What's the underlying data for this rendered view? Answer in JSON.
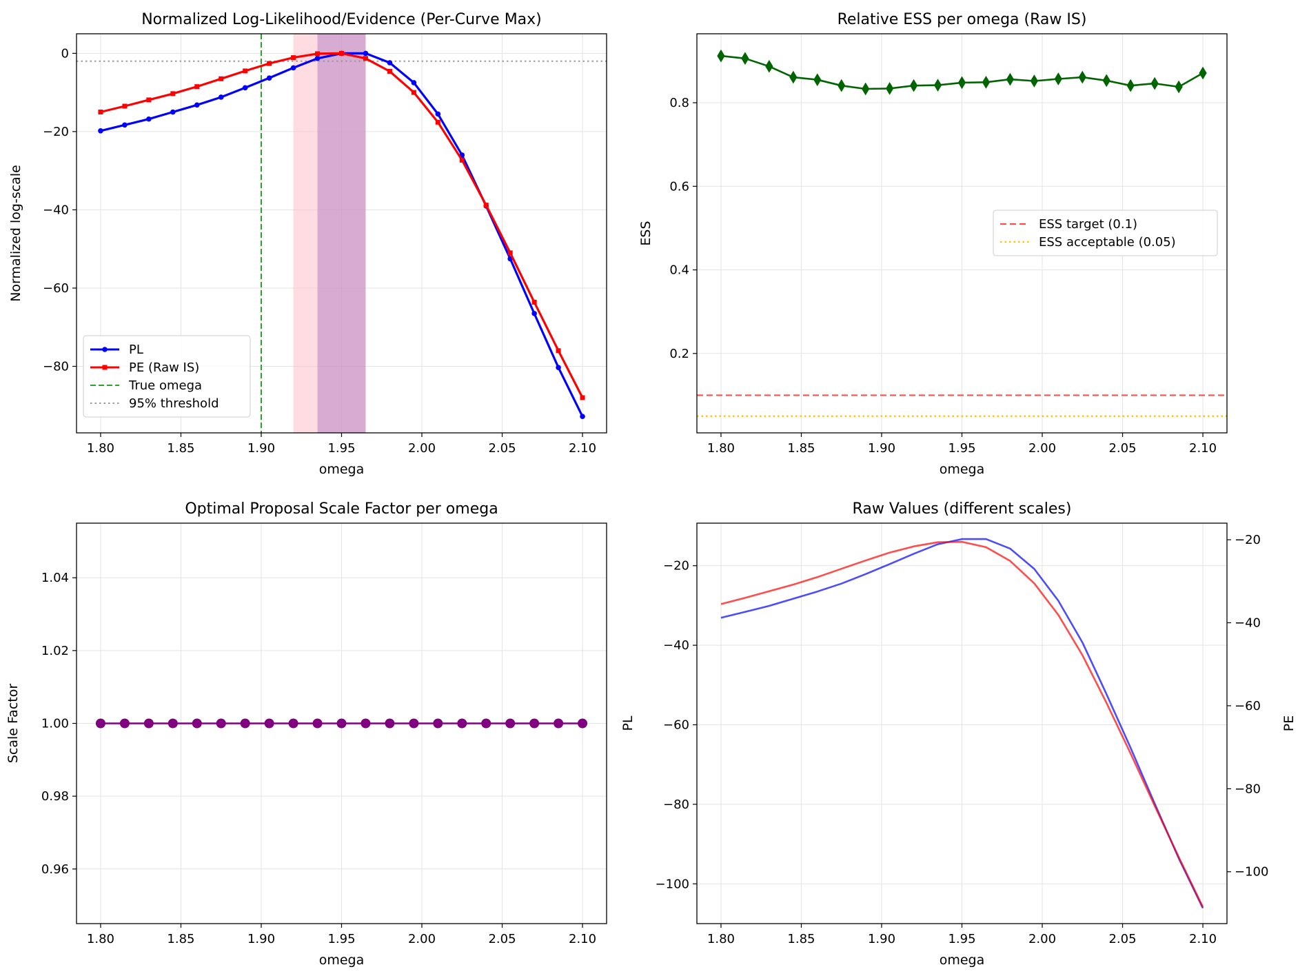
{
  "colors": {
    "pl": "#0000ff",
    "pe": "#ff0000",
    "true_omega": "#2ca02c",
    "threshold": "#999999",
    "ess": "#006400",
    "ess_target": "#ff4d4d",
    "ess_acceptable": "#ffc000",
    "scale": "#800080",
    "pl_span": "#ffc0c8",
    "pe_span": "#b784c7"
  },
  "chart_data": [
    {
      "type": "line",
      "title": "Normalized Log-Likelihood/Evidence (Per-Curve Max)",
      "xlabel": "omega",
      "ylabel": "Normalized log-scale",
      "xlim": [
        1.785,
        2.115
      ],
      "ylim": [
        -97,
        5
      ],
      "xticks": [
        1.8,
        1.85,
        1.9,
        1.95,
        2.0,
        2.05,
        2.1
      ],
      "xtick_labels": [
        "1.80",
        "1.85",
        "1.90",
        "1.95",
        "2.00",
        "2.05",
        "2.10"
      ],
      "yticks": [
        0,
        -20,
        -40,
        -60,
        -80
      ],
      "ytick_labels": [
        "0",
        "−20",
        "−40",
        "−60",
        "−80"
      ],
      "grid": true,
      "legend_position": "lower-left",
      "x": [
        1.8,
        1.815,
        1.83,
        1.845,
        1.86,
        1.875,
        1.89,
        1.905,
        1.92,
        1.935,
        1.95,
        1.965,
        1.98,
        1.995,
        2.01,
        2.025,
        2.04,
        2.055,
        2.07,
        2.085,
        2.1
      ],
      "series": [
        {
          "name": "PL",
          "marker": "circle",
          "values": [
            -19.8,
            -18.3,
            -16.8,
            -15.0,
            -13.2,
            -11.2,
            -8.8,
            -6.3,
            -3.7,
            -1.3,
            0.0,
            0.0,
            -2.4,
            -7.5,
            -15.5,
            -26.0,
            -39.0,
            -52.5,
            -66.5,
            -80.3,
            -92.8
          ]
        },
        {
          "name": "PE (Raw IS)",
          "marker": "square",
          "values": [
            -15.0,
            -13.5,
            -11.9,
            -10.3,
            -8.5,
            -6.5,
            -4.5,
            -2.6,
            -1.1,
            -0.1,
            0.0,
            -1.3,
            -4.6,
            -10.0,
            -17.6,
            -27.3,
            -38.8,
            -51.0,
            -63.6,
            -76.0,
            -88.0
          ]
        }
      ],
      "reference_lines": [
        {
          "name": "True omega",
          "orientation": "vertical",
          "x": 1.9,
          "style": "dashed"
        },
        {
          "name": "95% threshold",
          "orientation": "horizontal",
          "y": -2.0,
          "style": "dotted"
        }
      ],
      "shaded_x_ranges": [
        {
          "from": 1.92,
          "to": 1.965,
          "color": "pl_span"
        },
        {
          "from": 1.935,
          "to": 1.965,
          "color": "pe_span"
        }
      ]
    },
    {
      "type": "line",
      "title": "Relative ESS per omega (Raw IS)",
      "xlabel": "omega",
      "ylabel": "ESS",
      "xlim": [
        1.785,
        2.115
      ],
      "ylim": [
        0.01,
        0.965
      ],
      "xticks": [
        1.8,
        1.85,
        1.9,
        1.95,
        2.0,
        2.05,
        2.1
      ],
      "xtick_labels": [
        "1.80",
        "1.85",
        "1.90",
        "1.95",
        "2.00",
        "2.05",
        "2.10"
      ],
      "yticks": [
        0.2,
        0.4,
        0.6,
        0.8
      ],
      "ytick_labels": [
        "0.2",
        "0.4",
        "0.6",
        "0.8"
      ],
      "grid": true,
      "legend_position": "center-right",
      "x": [
        1.8,
        1.815,
        1.83,
        1.845,
        1.86,
        1.875,
        1.89,
        1.905,
        1.92,
        1.935,
        1.95,
        1.965,
        1.98,
        1.995,
        2.01,
        2.025,
        2.04,
        2.055,
        2.07,
        2.085,
        2.1
      ],
      "series": [
        {
          "name": "",
          "marker": "diamond",
          "values": [
            0.912,
            0.906,
            0.887,
            0.861,
            0.855,
            0.841,
            0.833,
            0.834,
            0.841,
            0.842,
            0.848,
            0.849,
            0.856,
            0.852,
            0.857,
            0.861,
            0.853,
            0.841,
            0.846,
            0.838,
            0.871
          ]
        }
      ],
      "reference_lines": [
        {
          "name": "ESS target (0.1)",
          "orientation": "horizontal",
          "y": 0.1,
          "style": "dashed"
        },
        {
          "name": "ESS acceptable (0.05)",
          "orientation": "horizontal",
          "y": 0.05,
          "style": "dotted"
        }
      ]
    },
    {
      "type": "line",
      "title": "Optimal Proposal Scale Factor per omega",
      "xlabel": "omega",
      "ylabel": "Scale Factor",
      "xlim": [
        1.785,
        2.115
      ],
      "ylim": [
        0.945,
        1.055
      ],
      "xticks": [
        1.8,
        1.85,
        1.9,
        1.95,
        2.0,
        2.05,
        2.1
      ],
      "xtick_labels": [
        "1.80",
        "1.85",
        "1.90",
        "1.95",
        "2.00",
        "2.05",
        "2.10"
      ],
      "yticks": [
        0.96,
        0.98,
        1.0,
        1.02,
        1.04
      ],
      "ytick_labels": [
        "0.96",
        "0.98",
        "1.00",
        "1.02",
        "1.04"
      ],
      "grid": true,
      "x": [
        1.8,
        1.815,
        1.83,
        1.845,
        1.86,
        1.875,
        1.89,
        1.905,
        1.92,
        1.935,
        1.95,
        1.965,
        1.98,
        1.995,
        2.01,
        2.025,
        2.04,
        2.055,
        2.07,
        2.085,
        2.1
      ],
      "series": [
        {
          "name": "",
          "marker": "circle",
          "values": [
            1.0,
            1.0,
            1.0,
            1.0,
            1.0,
            1.0,
            1.0,
            1.0,
            1.0,
            1.0,
            1.0,
            1.0,
            1.0,
            1.0,
            1.0,
            1.0,
            1.0,
            1.0,
            1.0,
            1.0,
            1.0
          ]
        }
      ]
    },
    {
      "type": "line",
      "title": "Raw Values (different scales)",
      "xlabel": "omega",
      "ylabel": "PL",
      "ylabel_right": "PE",
      "xlim": [
        1.785,
        2.115
      ],
      "ylim": [
        -110.0,
        -9.3
      ],
      "ylim_right": [
        -112.5,
        -16.0
      ],
      "xticks": [
        1.8,
        1.85,
        1.9,
        1.95,
        2.0,
        2.05,
        2.1
      ],
      "xtick_labels": [
        "1.80",
        "1.85",
        "1.90",
        "1.95",
        "2.00",
        "2.05",
        "2.10"
      ],
      "yticks": [
        -20,
        -40,
        -60,
        -80,
        -100
      ],
      "ytick_labels": [
        "−20",
        "−40",
        "−60",
        "−80",
        "−100"
      ],
      "yticks_right": [
        -20,
        -40,
        -60,
        -80,
        -100
      ],
      "ytick_labels_right": [
        "−20",
        "−40",
        "−60",
        "−80",
        "−100"
      ],
      "grid": true,
      "x": [
        1.8,
        1.815,
        1.83,
        1.845,
        1.86,
        1.875,
        1.89,
        1.905,
        1.92,
        1.935,
        1.95,
        1.965,
        1.98,
        1.995,
        2.01,
        2.025,
        2.04,
        2.055,
        2.07,
        2.085,
        2.1
      ],
      "series": [
        {
          "name": "PL",
          "axis": "left",
          "values": [
            -33.1,
            -31.6,
            -30.1,
            -28.3,
            -26.5,
            -24.5,
            -22.1,
            -19.6,
            -17.0,
            -14.6,
            -13.3,
            -13.3,
            -15.7,
            -20.8,
            -28.8,
            -39.3,
            -52.3,
            -65.8,
            -79.8,
            -93.6,
            -106.1
          ]
        },
        {
          "name": "PE",
          "axis": "right",
          "values": [
            -35.5,
            -34.0,
            -32.4,
            -30.8,
            -29.0,
            -27.0,
            -25.0,
            -23.1,
            -21.6,
            -20.6,
            -20.5,
            -21.8,
            -25.1,
            -30.5,
            -38.1,
            -47.8,
            -59.3,
            -71.5,
            -84.1,
            -96.5,
            -108.5
          ]
        }
      ]
    }
  ]
}
